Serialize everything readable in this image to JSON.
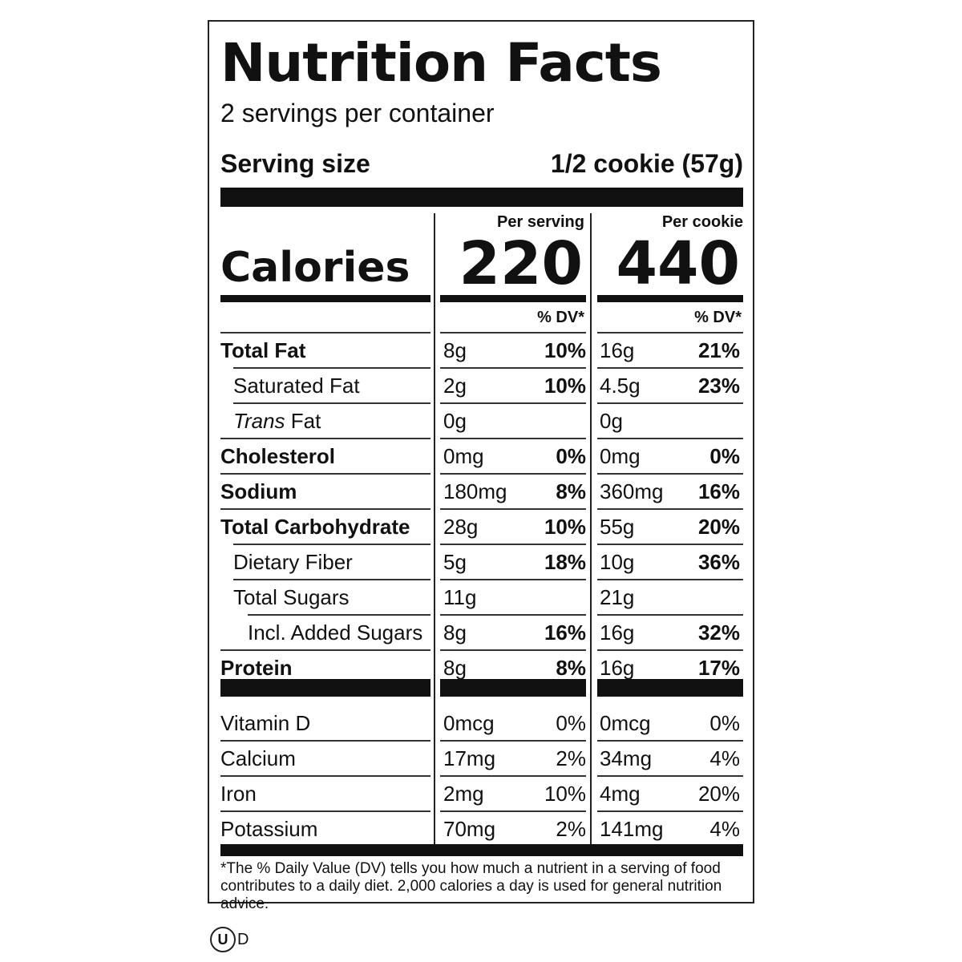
{
  "title": "Nutrition Facts",
  "servings_per_container": "2 servings per container",
  "serving_size_label": "Serving size",
  "serving_size_value": "1/2 cookie (57g)",
  "columns": {
    "per_serving_label": "Per serving",
    "per_cookie_label": "Per cookie",
    "dv_label": "% DV*"
  },
  "calories": {
    "label": "Calories",
    "per_serving": "220",
    "per_cookie": "440"
  },
  "nutrients": [
    {
      "name": "Total Fat",
      "amount1": "8g",
      "dv1": "10%",
      "amount2": "16g",
      "dv2": "21%"
    },
    {
      "name": "Saturated Fat",
      "amount1": "2g",
      "dv1": "10%",
      "amount2": "4.5g",
      "dv2": "23%"
    },
    {
      "name_italic": "Trans",
      "name_rest": " Fat",
      "amount1": "0g",
      "dv1": "",
      "amount2": "0g",
      "dv2": ""
    },
    {
      "name": "Cholesterol",
      "amount1": "0mg",
      "dv1": "0%",
      "amount2": "0mg",
      "dv2": "0%"
    },
    {
      "name": "Sodium",
      "amount1": "180mg",
      "dv1": "8%",
      "amount2": "360mg",
      "dv2": "16%"
    },
    {
      "name": "Total Carbohydrate",
      "amount1": "28g",
      "dv1": "10%",
      "amount2": "55g",
      "dv2": "20%"
    },
    {
      "name": "Dietary Fiber",
      "amount1": "5g",
      "dv1": "18%",
      "amount2": "10g",
      "dv2": "36%"
    },
    {
      "name": "Total Sugars",
      "amount1": "11g",
      "dv1": "",
      "amount2": "21g",
      "dv2": ""
    },
    {
      "name": "Incl. Added Sugars",
      "amount1": "8g",
      "dv1": "16%",
      "amount2": "16g",
      "dv2": "32%"
    },
    {
      "name": "Protein",
      "amount1": "8g",
      "dv1": "8%",
      "amount2": "16g",
      "dv2": "17%"
    }
  ],
  "vitamins": [
    {
      "name": "Vitamin D",
      "amount1": "0mcg",
      "dv1": "0%",
      "amount2": "0mcg",
      "dv2": "0%"
    },
    {
      "name": "Calcium",
      "amount1": "17mg",
      "dv1": "2%",
      "amount2": "34mg",
      "dv2": "4%"
    },
    {
      "name": "Iron",
      "amount1": "2mg",
      "dv1": "10%",
      "amount2": "4mg",
      "dv2": "20%"
    },
    {
      "name": "Potassium",
      "amount1": "70mg",
      "dv1": "2%",
      "amount2": "141mg",
      "dv2": "4%"
    }
  ],
  "footnote": "*The % Daily Value (DV) tells you how much a nutrient in a serving of food contributes to a daily diet. 2,000 calories a day is used for general nutrition advice.",
  "kosher_mark": {
    "symbol": "U",
    "suffix": "D"
  }
}
